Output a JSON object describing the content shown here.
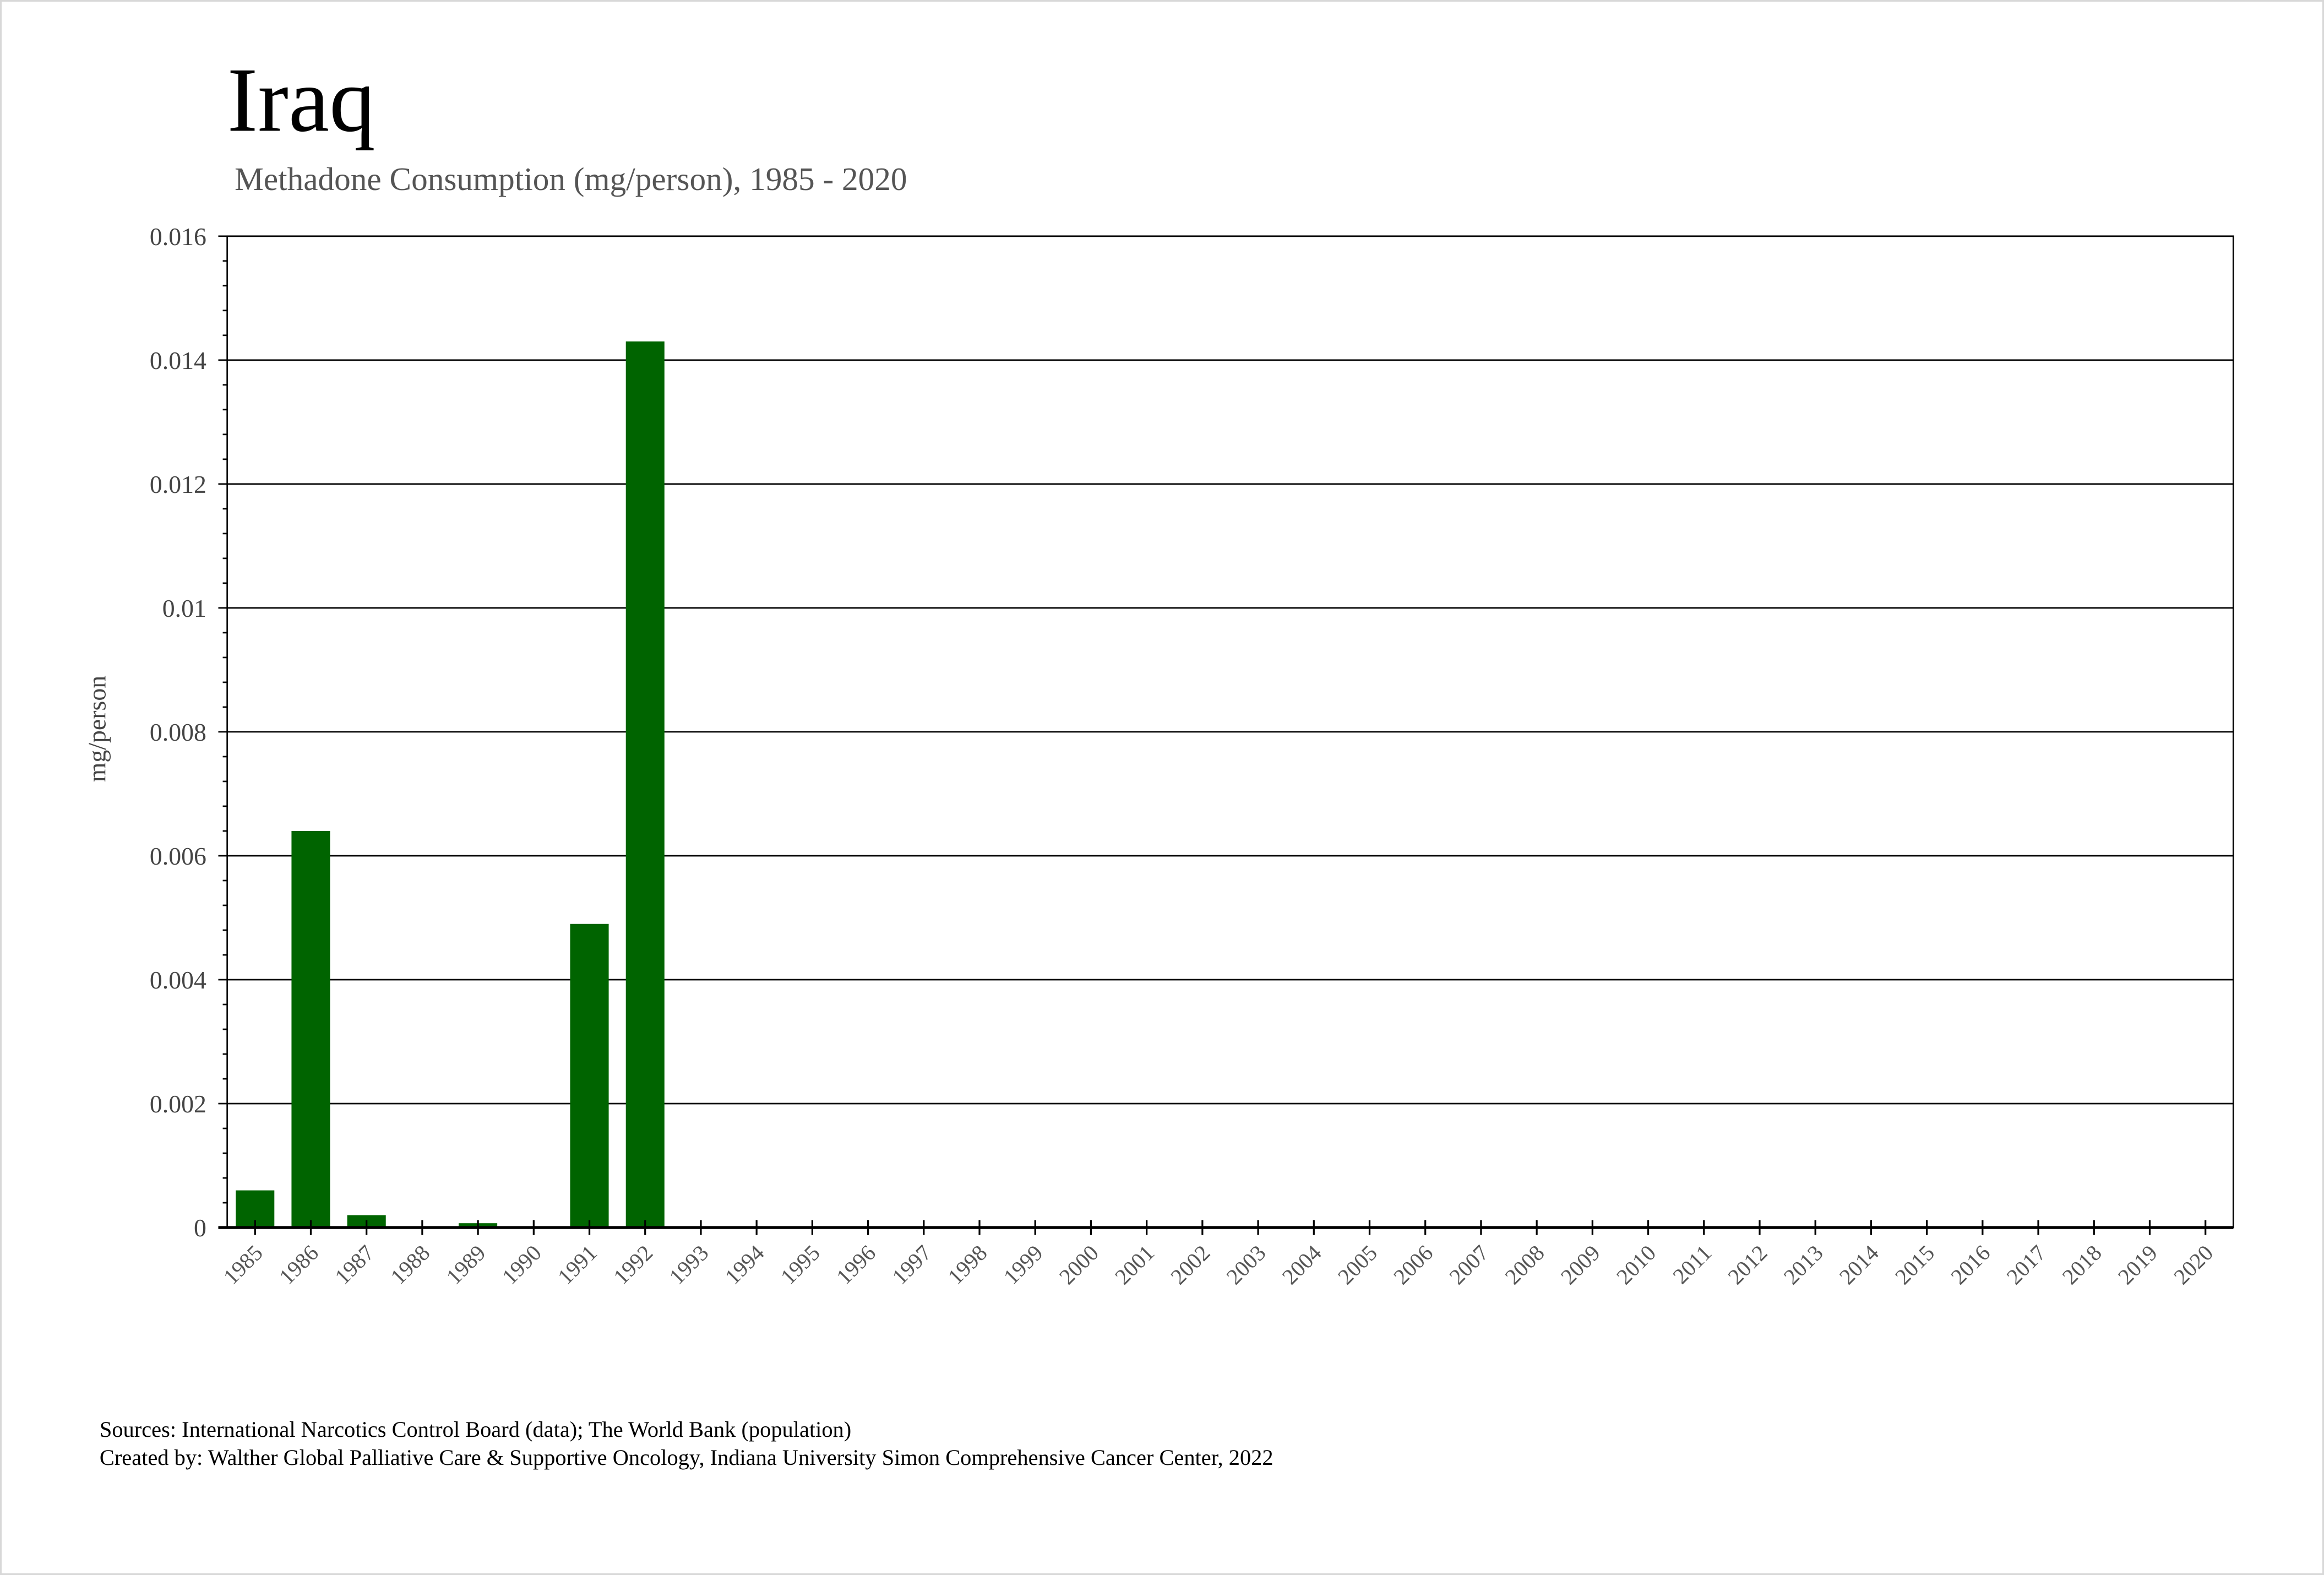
{
  "chart_data": {
    "type": "bar",
    "title": "Iraq",
    "subtitle": "Methadone Consumption (mg/person), 1985 - 2020",
    "xlabel": "",
    "ylabel": "mg/person",
    "ylim": [
      0,
      0.016
    ],
    "yticks": [
      "0",
      "0.002",
      "0.004",
      "0.006",
      "0.008",
      "0.01",
      "0.012",
      "0.014",
      "0.016"
    ],
    "grid": true,
    "bar_color": "#006400",
    "categories": [
      "1985",
      "1986",
      "1987",
      "1988",
      "1989",
      "1990",
      "1991",
      "1992",
      "1993",
      "1994",
      "1995",
      "1996",
      "1997",
      "1998",
      "1999",
      "2000",
      "2001",
      "2002",
      "2003",
      "2004",
      "2005",
      "2006",
      "2007",
      "2008",
      "2009",
      "2010",
      "2011",
      "2012",
      "2013",
      "2014",
      "2015",
      "2016",
      "2017",
      "2018",
      "2019",
      "2020"
    ],
    "values": [
      0.0006,
      0.0064,
      0.0002,
      0,
      7e-05,
      0,
      0.0049,
      0.0143,
      0,
      0,
      0,
      0,
      0,
      0,
      0,
      0,
      0,
      0,
      0,
      0,
      0,
      0,
      0,
      0,
      0,
      0,
      0,
      0,
      0,
      0,
      0,
      0,
      0,
      0,
      0,
      0
    ]
  },
  "footer": {
    "sources": "Sources: International Narcotics Control Board (data); The World Bank (population)",
    "created_by": "Created by: Walther Global Palliative Care & Supportive Oncology, Indiana University Simon Comprehensive Cancer Center, 2022"
  }
}
